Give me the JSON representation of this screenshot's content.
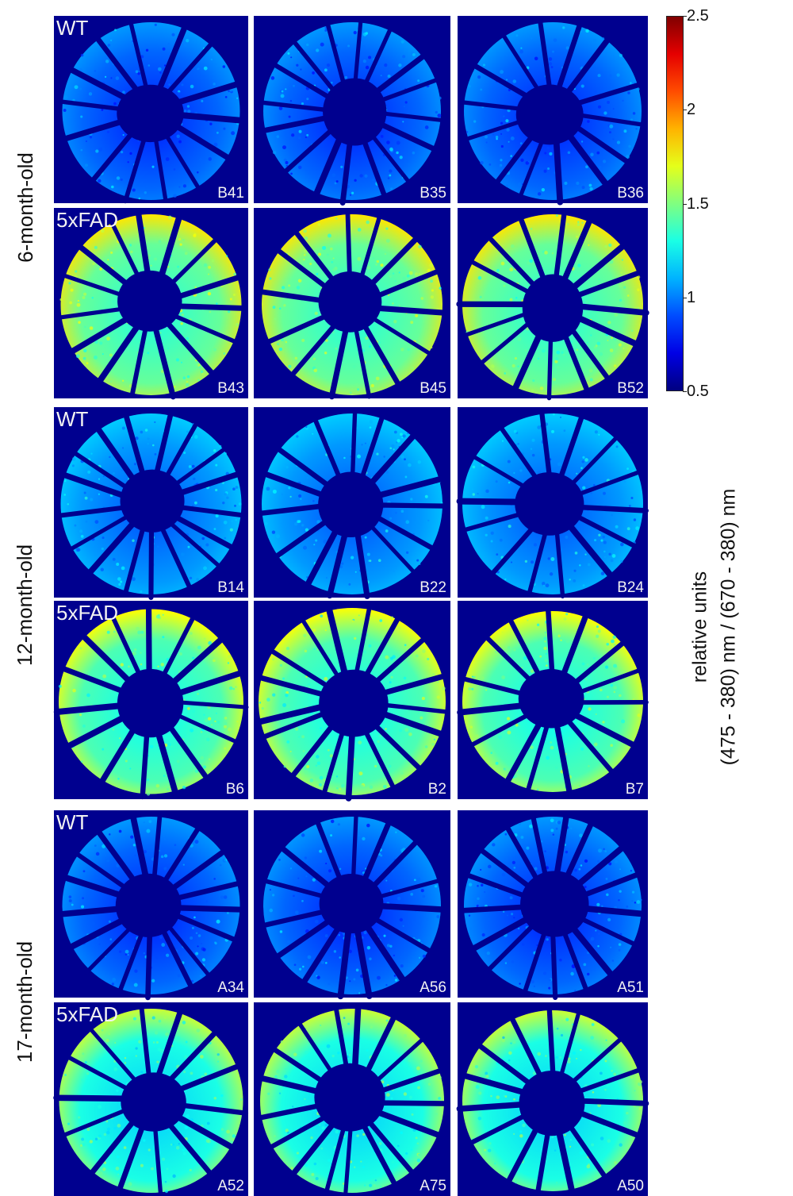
{
  "row_groups": [
    {
      "label": "6-month-old"
    },
    {
      "label": "12-month-old"
    },
    {
      "label": "17-month-old"
    }
  ],
  "rows": [
    {
      "group_label": "WT",
      "level": 0.95,
      "samples": [
        "B41",
        "B35",
        "B36"
      ]
    },
    {
      "group_label": "5xFAD",
      "level": 1.45,
      "samples": [
        "B43",
        "B45",
        "B52"
      ]
    },
    {
      "group_label": "WT",
      "level": 1.05,
      "samples": [
        "B14",
        "B22",
        "B24"
      ]
    },
    {
      "group_label": "5xFAD",
      "level": 1.4,
      "samples": [
        "B6",
        "B2",
        "B7"
      ]
    },
    {
      "group_label": "WT",
      "level": 0.95,
      "samples": [
        "A34",
        "A56",
        "A51"
      ]
    },
    {
      "group_label": "5xFAD",
      "level": 1.3,
      "samples": [
        "A52",
        "A75",
        "A50"
      ]
    }
  ],
  "colorbar": {
    "colormap": "jet",
    "min": 0.5,
    "max": 2.5,
    "ticks": [
      "2.5",
      "2",
      "1.5",
      "1",
      "0.5"
    ],
    "title_line1": "relative units",
    "title_line2": "(475 - 380) nm / (670 - 380) nm"
  },
  "colors": {
    "background": "#00008f",
    "label_text": "#f2f2f2"
  }
}
